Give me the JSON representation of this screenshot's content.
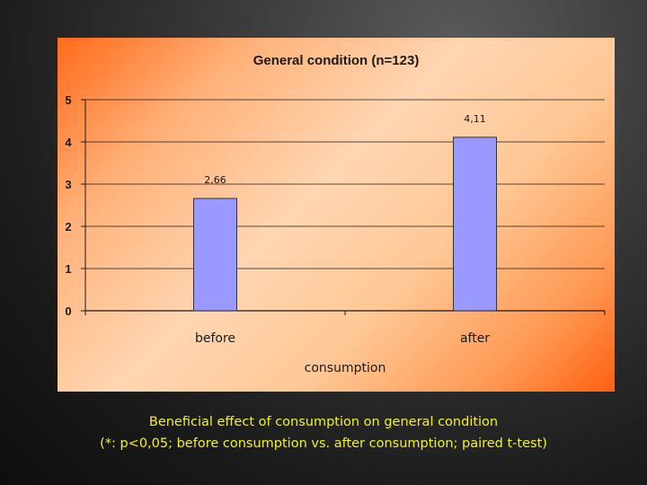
{
  "chart_data": {
    "type": "bar",
    "title": "General condition (n=123)",
    "categories": [
      "before",
      "after"
    ],
    "values": [
      2.66,
      4.11
    ],
    "data_labels": [
      "2,66",
      "4,11"
    ],
    "xlabel": "consumption",
    "ylabel": "",
    "ylim": [
      0,
      5
    ],
    "yticks": [
      0,
      1,
      2,
      3,
      4,
      5
    ],
    "grid": true,
    "legend": "none",
    "bar_color": "#9999ff"
  },
  "caption": {
    "line1": "Beneficial effect of consumption on general condition",
    "line2": "(*: p<0,05; before consumption vs. after consumption; paired t-test)"
  },
  "colors": {
    "caption": "#f2f226",
    "panel_orange": "#ff6a1a",
    "panel_light": "#ffd6b2",
    "background": "#2a2a2a"
  }
}
